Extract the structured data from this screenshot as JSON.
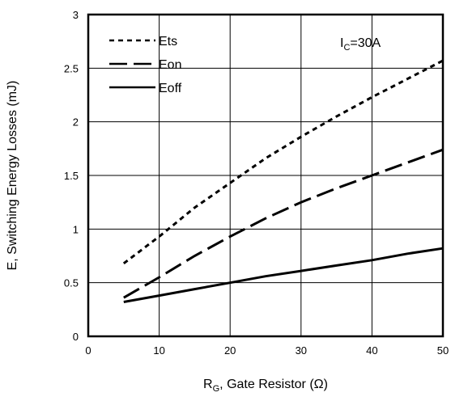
{
  "chart_data": {
    "type": "line",
    "title": "",
    "xlabel": {
      "main": "R",
      "sub": "G",
      "rest": ", Gate Resistor (Ω)"
    },
    "ylabel": "E, Switching Energy Losses (mJ)",
    "xlim": [
      0,
      50
    ],
    "ylim": [
      0,
      3
    ],
    "xticks": [
      "0",
      "10",
      "20",
      "30",
      "40",
      "50"
    ],
    "yticks": [
      "0",
      "0.5",
      "1",
      "1.5",
      "2",
      "2.5",
      "3"
    ],
    "grid": true,
    "legend_position": "top-left",
    "annotation": {
      "main": "I",
      "sub": "C",
      "rest": "=30A"
    },
    "series": [
      {
        "name": "Ets",
        "style": "short-dash",
        "x": [
          5,
          10,
          15,
          20,
          25,
          30,
          35,
          40,
          45,
          50
        ],
        "y": [
          0.68,
          0.93,
          1.2,
          1.43,
          1.66,
          1.86,
          2.05,
          2.23,
          2.4,
          2.57
        ]
      },
      {
        "name": "Eon",
        "style": "long-dash",
        "x": [
          5,
          10,
          15,
          20,
          25,
          30,
          35,
          40,
          45,
          50
        ],
        "y": [
          0.36,
          0.55,
          0.75,
          0.93,
          1.1,
          1.25,
          1.38,
          1.5,
          1.62,
          1.74
        ]
      },
      {
        "name": "Eoff",
        "style": "solid",
        "x": [
          5,
          10,
          15,
          20,
          25,
          30,
          35,
          40,
          45,
          50
        ],
        "y": [
          0.32,
          0.38,
          0.44,
          0.5,
          0.56,
          0.61,
          0.66,
          0.71,
          0.77,
          0.82
        ]
      }
    ]
  }
}
